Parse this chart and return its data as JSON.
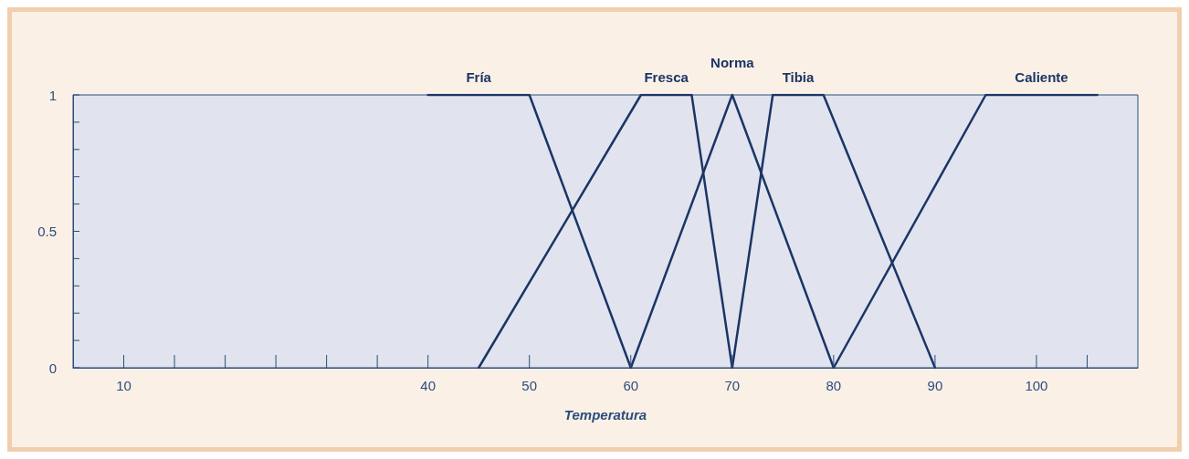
{
  "chart_data": {
    "type": "line",
    "xlabel": "Temperatura",
    "xlim": [
      5,
      110
    ],
    "xticks": [
      10,
      {
        "value": 15,
        "label": null
      },
      {
        "value": 20,
        "label": null
      },
      {
        "value": 25,
        "label": null
      },
      {
        "value": 30,
        "label": null
      },
      {
        "value": 35,
        "label": null
      },
      40,
      50,
      60,
      70,
      80,
      90,
      100,
      {
        "value": 105,
        "label": null
      }
    ],
    "ylim": [
      0,
      1
    ],
    "yticks": [
      0,
      {
        "value": 0.1,
        "label": null
      },
      {
        "value": 0.2,
        "label": null
      },
      {
        "value": 0.3,
        "label": null
      },
      {
        "value": 0.4,
        "label": null
      },
      0.5,
      {
        "value": 0.6,
        "label": null
      },
      {
        "value": 0.7,
        "label": null
      },
      {
        "value": 0.8,
        "label": null
      },
      {
        "value": 0.9,
        "label": null
      },
      1
    ],
    "grid": false,
    "legend": false,
    "marker": "none",
    "line_style": "solid",
    "series": [
      {
        "name": "Fría",
        "color": "#1b3566",
        "x": [
          40,
          50,
          60
        ],
        "values": [
          1,
          1,
          0
        ]
      },
      {
        "name": "Fresca",
        "color": "#1b3566",
        "x": [
          45,
          61,
          66,
          70
        ],
        "values": [
          0,
          1,
          1,
          0
        ]
      },
      {
        "name": "Norma",
        "color": "#1b3566",
        "x": [
          60,
          70,
          80
        ],
        "values": [
          0,
          1,
          0
        ]
      },
      {
        "name": "Tibia",
        "color": "#1b3566",
        "x": [
          70,
          74,
          79,
          90
        ],
        "values": [
          0,
          1,
          1,
          0
        ]
      },
      {
        "name": "Caliente",
        "color": "#1b3566",
        "x": [
          80,
          95,
          106
        ],
        "values": [
          0,
          1,
          1
        ]
      }
    ]
  }
}
